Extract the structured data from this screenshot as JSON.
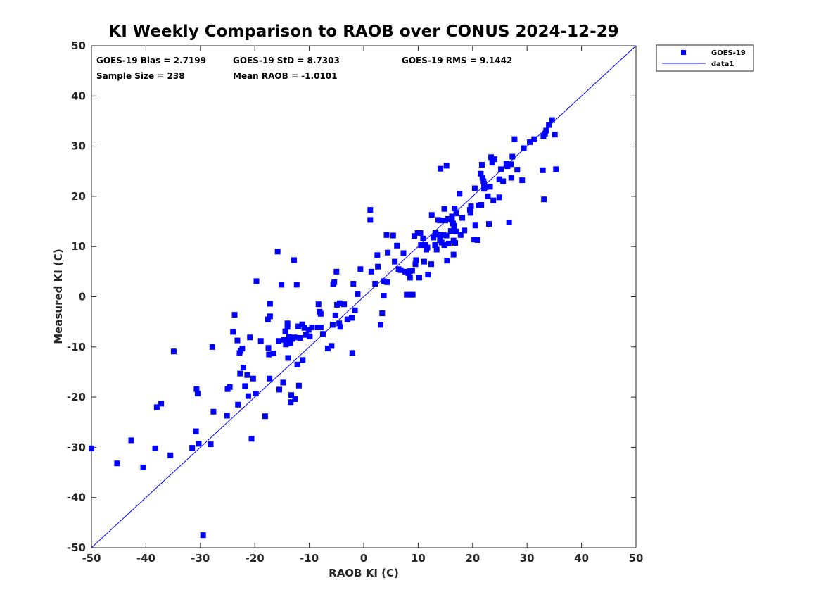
{
  "chart_data": {
    "type": "scatter",
    "title": "KI Weekly Comparison to RAOB over CONUS 2024-12-29",
    "xlabel": "RAOB KI (C)",
    "ylabel": "Measured KI (C)",
    "xlim": [
      -50,
      50
    ],
    "ylim": [
      -50,
      50
    ],
    "xticks": [
      -50,
      -40,
      -30,
      -20,
      -10,
      0,
      10,
      20,
      30,
      40,
      50
    ],
    "yticks": [
      -50,
      -40,
      -30,
      -20,
      -10,
      0,
      10,
      20,
      30,
      40,
      50
    ],
    "grid": false,
    "legend_position": "outside-top-right",
    "legend": [
      "GOES-19",
      "data1"
    ],
    "colors": {
      "points": "#0000ff",
      "line": "#0000ff",
      "axis": "#262626"
    },
    "stats": {
      "bias": "GOES-19 Bias = 2.7199",
      "std": "GOES-19 StD = 8.7303",
      "rms": "GOES-19 RMS = 9.1442",
      "sample": "Sample Size = 238",
      "mean": "Mean RAOB = -1.0101"
    },
    "reference_line": {
      "name": "data1",
      "x": [
        -50,
        50
      ],
      "y": [
        -50,
        50
      ]
    },
    "series": [
      {
        "name": "GOES-19",
        "points": [
          [
            -50,
            -30.2
          ],
          [
            -45.3,
            -33.2
          ],
          [
            -42.7,
            -28.6
          ],
          [
            -40.5,
            -34
          ],
          [
            -38.3,
            -30.2
          ],
          [
            -38,
            -22
          ],
          [
            -37.2,
            -21.3
          ],
          [
            -35.5,
            -31.6
          ],
          [
            -34.9,
            -10.9
          ],
          [
            -31.5,
            -30.1
          ],
          [
            -30.8,
            -26.8
          ],
          [
            -30.7,
            -18.4
          ],
          [
            -30.5,
            -19.3
          ],
          [
            -30.3,
            -29.3
          ],
          [
            -29.5,
            -47.5
          ],
          [
            -28.1,
            -29.4
          ],
          [
            -27.8,
            -10
          ],
          [
            -27.6,
            -22.9
          ],
          [
            -25.1,
            -23.7
          ],
          [
            -25,
            -18.4
          ],
          [
            -24.6,
            -18
          ],
          [
            -24,
            -7
          ],
          [
            -23.7,
            -3.6
          ],
          [
            -23.2,
            -8.7
          ],
          [
            -23.1,
            -21.5
          ],
          [
            -22.8,
            -11.2
          ],
          [
            -22.7,
            -15.3
          ],
          [
            -22.6,
            -10.8
          ],
          [
            -22.3,
            -10.3
          ],
          [
            -22.1,
            -14.1
          ],
          [
            -21.8,
            -17.8
          ],
          [
            -21.4,
            -15.6
          ],
          [
            -21.2,
            -19.8
          ],
          [
            -20.9,
            -8.1
          ],
          [
            -20.6,
            -28.3
          ],
          [
            -20.3,
            -16.3
          ],
          [
            -19.8,
            -19.3
          ],
          [
            -19.7,
            3.1
          ],
          [
            -18.9,
            -8.8
          ],
          [
            -18.1,
            -23.8
          ],
          [
            -17.6,
            -4.5
          ],
          [
            -17.5,
            -10.2
          ],
          [
            -17.4,
            -11.5
          ],
          [
            -17.3,
            -16.3
          ],
          [
            -17.2,
            -3.9
          ],
          [
            -17.2,
            -1.4
          ],
          [
            -16.6,
            -11.3
          ],
          [
            -15.8,
            9
          ],
          [
            -15.6,
            -8.8
          ],
          [
            -15.5,
            -18.5
          ],
          [
            -15.1,
            2.4
          ],
          [
            -14.8,
            -17.1
          ],
          [
            -14.6,
            -8.6
          ],
          [
            -14.4,
            -6.9
          ],
          [
            -14.3,
            -9.5
          ],
          [
            -14,
            -5.3
          ],
          [
            -14,
            -6
          ],
          [
            -13.9,
            -12.2
          ],
          [
            -13.7,
            -8
          ],
          [
            -13.6,
            -8.7
          ],
          [
            -13.5,
            -9.3
          ],
          [
            -13.4,
            -21
          ],
          [
            -13.3,
            -19.6
          ],
          [
            -13.1,
            -8.4
          ],
          [
            -12.8,
            7.3
          ],
          [
            -12.7,
            -8.1
          ],
          [
            -12.6,
            -20.4
          ],
          [
            -12.3,
            2.4
          ],
          [
            -12.2,
            -13.5
          ],
          [
            -12,
            -5.9
          ],
          [
            -11.9,
            -17.7
          ],
          [
            -11.7,
            -8.2
          ],
          [
            -11.3,
            -5.5
          ],
          [
            -11.2,
            -12.6
          ],
          [
            -10.9,
            -6.2
          ],
          [
            -10.6,
            -7.6
          ],
          [
            -10.1,
            -6.6
          ],
          [
            -9.9,
            -7.9
          ],
          [
            -9.5,
            -6.1
          ],
          [
            -8.4,
            -6.1
          ],
          [
            -8.3,
            -1.5
          ],
          [
            -8.1,
            -3
          ],
          [
            -7.9,
            -3.4
          ],
          [
            -7.9,
            -6.1
          ],
          [
            -7.5,
            -7.4
          ],
          [
            -6.6,
            -10.3
          ],
          [
            -5.9,
            -9.8
          ],
          [
            -5.7,
            -5.6
          ],
          [
            -5.6,
            2.5
          ],
          [
            -5.4,
            2.9
          ],
          [
            -5.2,
            -3.7
          ],
          [
            -5,
            5
          ],
          [
            -4.9,
            -1.6
          ],
          [
            -4.5,
            -5.3
          ],
          [
            -4.4,
            -1.3
          ],
          [
            -4.3,
            -6
          ],
          [
            -3.6,
            -1.5
          ],
          [
            -3,
            -4.5
          ],
          [
            -2.2,
            -4.2
          ],
          [
            -2.1,
            -11.2
          ],
          [
            -1.9,
            2.6
          ],
          [
            -1.6,
            -2.7
          ],
          [
            -1.1,
            0.5
          ],
          [
            -0.6,
            5.5
          ],
          [
            1.2,
            17.3
          ],
          [
            1.2,
            15.3
          ],
          [
            1.4,
            5
          ],
          [
            2.1,
            2.6
          ],
          [
            2.5,
            8.3
          ],
          [
            2.6,
            6
          ],
          [
            3.1,
            -5.6
          ],
          [
            3.4,
            -3.3
          ],
          [
            3.7,
            3.1
          ],
          [
            3.7,
            0.2
          ],
          [
            4.2,
            12.3
          ],
          [
            4.3,
            2.9
          ],
          [
            4.4,
            8.8
          ],
          [
            5.4,
            12.2
          ],
          [
            5.7,
            7
          ],
          [
            6.1,
            10.2
          ],
          [
            6.4,
            5.5
          ],
          [
            6.8,
            5.3
          ],
          [
            7.3,
            8.7
          ],
          [
            7.6,
            5
          ],
          [
            7.9,
            0.4
          ],
          [
            8.2,
            4.7
          ],
          [
            8.5,
            5.1
          ],
          [
            8.5,
            3.8
          ],
          [
            8.6,
            0.4
          ],
          [
            8.9,
            5.2
          ],
          [
            9,
            0.4
          ],
          [
            9.3,
            12.1
          ],
          [
            9.5,
            6.5
          ],
          [
            9.6,
            7.3
          ],
          [
            9.9,
            12.7
          ],
          [
            10.2,
            3.8
          ],
          [
            10.4,
            12.7
          ],
          [
            10.5,
            10.3
          ],
          [
            10.9,
            11.6
          ],
          [
            11.1,
            7
          ],
          [
            11.3,
            10.3
          ],
          [
            11.5,
            9.4
          ],
          [
            11.7,
            9.8
          ],
          [
            11.8,
            4.4
          ],
          [
            12.4,
            6.5
          ],
          [
            12.5,
            16.3
          ],
          [
            12.8,
            11.8
          ],
          [
            13.1,
            10.3
          ],
          [
            13.2,
            12.7
          ],
          [
            13.4,
            9.4
          ],
          [
            13.6,
            12.4
          ],
          [
            13.7,
            15.3
          ],
          [
            14,
            15.2
          ],
          [
            14,
            11.3
          ],
          [
            14.1,
            25.5
          ],
          [
            14.3,
            10.8
          ],
          [
            14.6,
            12.3
          ],
          [
            14.8,
            17.5
          ],
          [
            14.8,
            10.3
          ],
          [
            15,
            15.2
          ],
          [
            15.2,
            26.1
          ],
          [
            15.2,
            12.2
          ],
          [
            15.3,
            7.2
          ],
          [
            15.5,
            15.5
          ],
          [
            15.6,
            10.6
          ],
          [
            16,
            13.1
          ],
          [
            16.2,
            16
          ],
          [
            16.2,
            15.3
          ],
          [
            16.4,
            14.6
          ],
          [
            16.5,
            11.2
          ],
          [
            16.5,
            8.4
          ],
          [
            16.6,
            14.1
          ],
          [
            16.7,
            17.6
          ],
          [
            16.8,
            10.7
          ],
          [
            17,
            16.6
          ],
          [
            17,
            13
          ],
          [
            17.6,
            20.5
          ],
          [
            17.8,
            12.3
          ],
          [
            18.1,
            15.7
          ],
          [
            18.5,
            13.2
          ],
          [
            19.5,
            17.3
          ],
          [
            19.6,
            16.7
          ],
          [
            19.7,
            18
          ],
          [
            20.3,
            11.4
          ],
          [
            20.4,
            21.6
          ],
          [
            20.5,
            14.2
          ],
          [
            20.9,
            11.3
          ],
          [
            21.1,
            18.2
          ],
          [
            21.5,
            24.5
          ],
          [
            21.6,
            18.3
          ],
          [
            21.7,
            26.3
          ],
          [
            21.8,
            23.7
          ],
          [
            22,
            23
          ],
          [
            22.1,
            22.5
          ],
          [
            22.1,
            21.5
          ],
          [
            22.4,
            21.8
          ],
          [
            22.8,
            20
          ],
          [
            23,
            14.5
          ],
          [
            23.2,
            21.9
          ],
          [
            23.4,
            27.8
          ],
          [
            23.6,
            26.7
          ],
          [
            23.8,
            19.2
          ],
          [
            24,
            27.4
          ],
          [
            24.9,
            23.4
          ],
          [
            24.9,
            19.8
          ],
          [
            25.2,
            25.4
          ],
          [
            25.6,
            23
          ],
          [
            26.2,
            26.5
          ],
          [
            26.4,
            26
          ],
          [
            26.7,
            14.8
          ],
          [
            27,
            26.4
          ],
          [
            27.1,
            23.7
          ],
          [
            27.3,
            27.9
          ],
          [
            27.7,
            31.4
          ],
          [
            28.2,
            25.3
          ],
          [
            29.1,
            23.2
          ],
          [
            29.4,
            29.6
          ],
          [
            30.5,
            30.8
          ],
          [
            31.3,
            31.4
          ],
          [
            32.9,
            25.2
          ],
          [
            33,
            32
          ],
          [
            33.1,
            19.4
          ],
          [
            33.3,
            32.5
          ],
          [
            33.5,
            33.1
          ],
          [
            34,
            34.2
          ],
          [
            34.6,
            35.2
          ],
          [
            35.1,
            32.3
          ],
          [
            35.3,
            25.4
          ]
        ]
      }
    ]
  }
}
